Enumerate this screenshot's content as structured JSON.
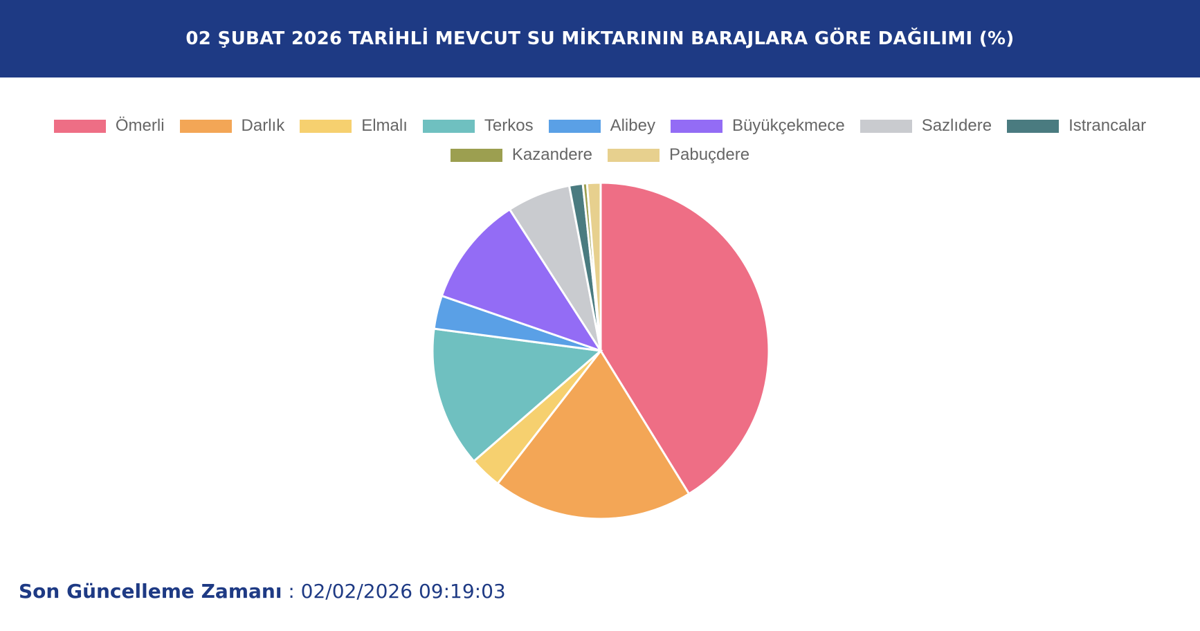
{
  "chart_data": {
    "type": "pie",
    "title": "02 ŞUBAT 2026 TARİHLİ MEVCUT SU MİKTARININ BARAJLARA GÖRE DAĞILIMI (%)",
    "categories": [
      "Ömerli",
      "Darlık",
      "Elmalı",
      "Terkos",
      "Alibey",
      "Büyükçekmece",
      "Sazlıdere",
      "Istrancalar",
      "Kazandere",
      "Pabuçdere"
    ],
    "values": [
      41.2,
      19.3,
      3.1,
      13.5,
      3.2,
      10.6,
      6.1,
      1.3,
      0.4,
      1.3
    ],
    "colors": [
      "#ee6e85",
      "#f3a656",
      "#f6d06f",
      "#6fc0c0",
      "#5aa0e6",
      "#936cf5",
      "#c9cbcf",
      "#4a7b80",
      "#9c9f50",
      "#e7d08e"
    ],
    "legend": "top"
  },
  "footer": {
    "label": "Son Güncelleme Zamanı",
    "separator": ":",
    "value": "02/02/2026 09:19:03"
  }
}
